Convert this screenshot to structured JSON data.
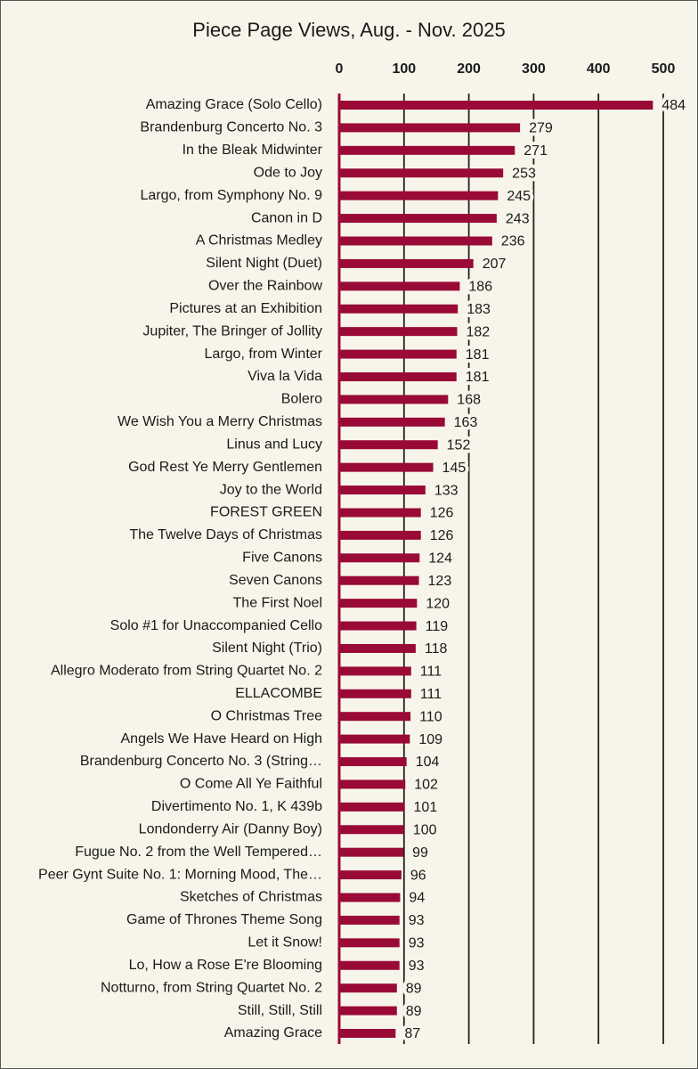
{
  "chart_data": {
    "type": "hbar",
    "title": "Piece Page Views, Aug. - Nov. 2025",
    "categories": [
      "Amazing Grace (Solo Cello)",
      "Brandenburg Concerto No. 3",
      "In the Bleak Midwinter",
      "Ode to Joy",
      "Largo, from Symphony No. 9",
      "Canon in D",
      "A Christmas Medley",
      "Silent Night (Duet)",
      "Over the Rainbow",
      "Pictures at an Exhibition",
      "Jupiter, The Bringer of Jollity",
      "Largo, from Winter",
      "Viva la Vida",
      "Bolero",
      "We Wish You a Merry Christmas",
      "Linus and Lucy",
      "God Rest Ye Merry Gentlemen",
      "Joy to the World",
      "FOREST GREEN",
      "The Twelve Days of Christmas",
      "Five Canons",
      "Seven Canons",
      "The First Noel",
      "Solo #1 for Unaccompanied Cello",
      "Silent Night (Trio)",
      "Allegro Moderato from String Quartet No. 2",
      "ELLACOMBE",
      "O Christmas Tree",
      "Angels We Have Heard on High",
      "Brandenburg Concerto No. 3 (String…",
      "O Come All Ye Faithful",
      "Divertimento No. 1, K 439b",
      "Londonderry Air (Danny Boy)",
      "Fugue No. 2 from the Well Tempered…",
      "Peer Gynt Suite No. 1: Morning Mood, The…",
      "Sketches of Christmas",
      "Game of Thrones Theme Song",
      "Let it Snow!",
      "Lo, How a Rose E're Blooming",
      "Notturno, from String Quartet No. 2",
      "Still, Still, Still",
      "Amazing Grace"
    ],
    "values": [
      484,
      279,
      271,
      253,
      245,
      243,
      236,
      207,
      186,
      183,
      182,
      181,
      181,
      168,
      163,
      152,
      145,
      133,
      126,
      126,
      124,
      123,
      120,
      119,
      118,
      111,
      111,
      110,
      109,
      104,
      102,
      101,
      100,
      99,
      96,
      94,
      93,
      93,
      93,
      89,
      89,
      87
    ],
    "color": "#9a0a36",
    "xlim": [
      0,
      500
    ],
    "xticks": [
      0,
      100,
      200,
      300,
      400,
      500
    ],
    "grid": true
  }
}
